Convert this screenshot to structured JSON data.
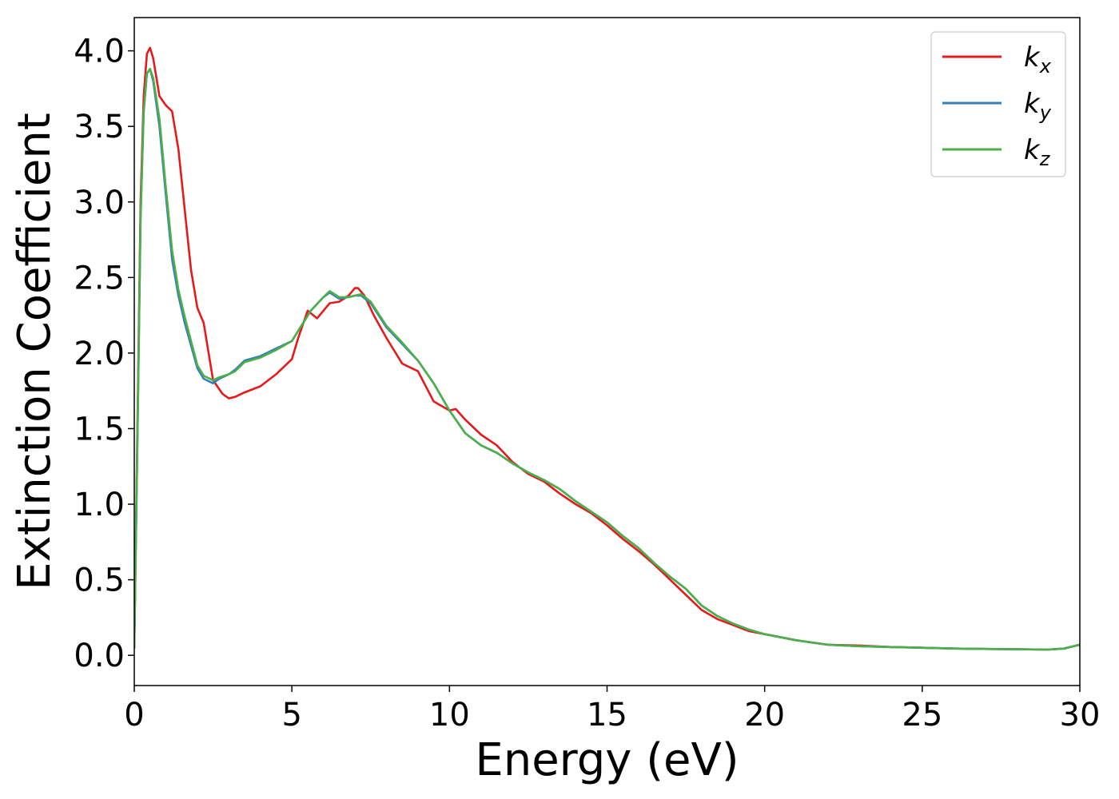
{
  "chart_data": {
    "type": "line",
    "xlabel": "Energy (eV)",
    "ylabel": "Extinction Coefficient",
    "xlim": [
      0,
      30
    ],
    "ylim": [
      -0.2,
      4.22
    ],
    "xticks": [
      0,
      5,
      10,
      15,
      20,
      25,
      30
    ],
    "xtick_labels": [
      "0",
      "5",
      "10",
      "15",
      "20",
      "25",
      "30"
    ],
    "yticks": [
      0.0,
      0.5,
      1.0,
      1.5,
      2.0,
      2.5,
      3.0,
      3.5,
      4.0
    ],
    "ytick_labels": [
      "0.0",
      "0.5",
      "1.0",
      "1.5",
      "2.0",
      "2.5",
      "3.0",
      "3.5",
      "4.0"
    ],
    "grid": false,
    "legend_position": "top-right",
    "series": [
      {
        "name": "k",
        "subscript": "x",
        "color": "#e41a1c",
        "x": [
          0,
          0.1,
          0.2,
          0.3,
          0.4,
          0.5,
          0.6,
          0.8,
          1.0,
          1.2,
          1.4,
          1.6,
          1.8,
          2.0,
          2.2,
          2.5,
          2.8,
          3.0,
          3.2,
          3.5,
          4.0,
          4.5,
          5.0,
          5.2,
          5.5,
          5.8,
          6.0,
          6.2,
          6.5,
          6.8,
          7.0,
          7.1,
          7.3,
          7.6,
          8.0,
          8.5,
          9.0,
          9.5,
          10.0,
          10.2,
          10.5,
          11.0,
          11.5,
          12.0,
          12.5,
          13.0,
          13.5,
          14.0,
          14.5,
          15.0,
          15.5,
          16.0,
          16.5,
          17.0,
          17.5,
          18.0,
          18.5,
          19.0,
          19.5,
          20.0,
          21.0,
          22.0,
          23.0,
          24.0,
          25.0,
          26.0,
          27.0,
          28.0,
          29.0,
          29.5,
          30.0
        ],
        "y": [
          0.05,
          1.5,
          3.0,
          3.7,
          3.98,
          4.02,
          3.95,
          3.7,
          3.64,
          3.6,
          3.35,
          2.95,
          2.55,
          2.3,
          2.2,
          1.82,
          1.73,
          1.7,
          1.71,
          1.74,
          1.78,
          1.86,
          1.96,
          2.1,
          2.28,
          2.23,
          2.28,
          2.33,
          2.34,
          2.38,
          2.43,
          2.43,
          2.38,
          2.25,
          2.1,
          1.93,
          1.88,
          1.68,
          1.62,
          1.63,
          1.56,
          1.46,
          1.39,
          1.28,
          1.2,
          1.15,
          1.07,
          1.0,
          0.94,
          0.86,
          0.77,
          0.69,
          0.6,
          0.5,
          0.4,
          0.3,
          0.24,
          0.2,
          0.16,
          0.14,
          0.1,
          0.07,
          0.065,
          0.055,
          0.05,
          0.045,
          0.042,
          0.04,
          0.038,
          0.045,
          0.07
        ]
      },
      {
        "name": "k",
        "subscript": "y",
        "color": "#377eb8",
        "x": [
          0,
          0.1,
          0.2,
          0.3,
          0.4,
          0.5,
          0.6,
          0.8,
          1.0,
          1.2,
          1.4,
          1.6,
          1.8,
          2.0,
          2.2,
          2.4,
          2.5,
          2.7,
          3.0,
          3.2,
          3.5,
          4.0,
          4.5,
          5.0,
          5.3,
          5.6,
          6.0,
          6.2,
          6.5,
          6.8,
          7.0,
          7.2,
          7.5,
          8.0,
          8.5,
          9.0,
          9.5,
          10.0,
          10.5,
          11.0,
          11.5,
          12.0,
          12.5,
          13.0,
          13.5,
          14.0,
          14.5,
          15.0,
          15.5,
          16.0,
          16.5,
          17.0,
          17.5,
          18.0,
          18.5,
          19.0,
          19.5,
          20.0,
          21.0,
          22.0,
          23.0,
          24.0,
          25.0,
          26.0,
          27.0,
          28.0,
          29.0,
          29.5,
          30.0
        ],
        "y": [
          0.05,
          1.4,
          2.9,
          3.6,
          3.85,
          3.88,
          3.8,
          3.5,
          3.05,
          2.62,
          2.38,
          2.2,
          2.05,
          1.9,
          1.83,
          1.81,
          1.8,
          1.83,
          1.86,
          1.89,
          1.95,
          1.98,
          2.03,
          2.08,
          2.18,
          2.28,
          2.37,
          2.4,
          2.36,
          2.37,
          2.38,
          2.38,
          2.33,
          2.17,
          2.06,
          1.95,
          1.8,
          1.62,
          1.47,
          1.39,
          1.34,
          1.27,
          1.21,
          1.16,
          1.1,
          1.02,
          0.95,
          0.88,
          0.79,
          0.71,
          0.61,
          0.52,
          0.44,
          0.33,
          0.26,
          0.21,
          0.17,
          0.14,
          0.1,
          0.07,
          0.06,
          0.055,
          0.05,
          0.045,
          0.042,
          0.04,
          0.038,
          0.045,
          0.07
        ]
      },
      {
        "name": "k",
        "subscript": "z",
        "color": "#4daf4a",
        "x": [
          0,
          0.1,
          0.2,
          0.3,
          0.4,
          0.5,
          0.6,
          0.8,
          1.0,
          1.2,
          1.4,
          1.6,
          1.8,
          2.0,
          2.2,
          2.4,
          2.5,
          2.7,
          3.0,
          3.2,
          3.5,
          4.0,
          4.5,
          5.0,
          5.3,
          5.6,
          6.0,
          6.2,
          6.5,
          6.8,
          7.0,
          7.2,
          7.5,
          8.0,
          8.5,
          9.0,
          9.5,
          10.0,
          10.5,
          11.0,
          11.5,
          12.0,
          12.5,
          13.0,
          13.5,
          14.0,
          14.5,
          15.0,
          15.5,
          16.0,
          16.5,
          17.0,
          17.5,
          18.0,
          18.5,
          19.0,
          19.5,
          20.0,
          21.0,
          22.0,
          23.0,
          24.0,
          25.0,
          26.0,
          27.0,
          28.0,
          29.0,
          29.5,
          30.0
        ],
        "y": [
          0.05,
          1.4,
          2.9,
          3.6,
          3.85,
          3.88,
          3.82,
          3.55,
          3.1,
          2.68,
          2.42,
          2.24,
          2.08,
          1.92,
          1.85,
          1.83,
          1.82,
          1.84,
          1.86,
          1.88,
          1.94,
          1.97,
          2.02,
          2.08,
          2.18,
          2.28,
          2.37,
          2.41,
          2.37,
          2.37,
          2.38,
          2.39,
          2.34,
          2.18,
          2.07,
          1.95,
          1.8,
          1.62,
          1.47,
          1.39,
          1.34,
          1.27,
          1.21,
          1.16,
          1.1,
          1.02,
          0.95,
          0.88,
          0.79,
          0.71,
          0.61,
          0.52,
          0.44,
          0.33,
          0.26,
          0.21,
          0.17,
          0.14,
          0.1,
          0.07,
          0.06,
          0.055,
          0.05,
          0.045,
          0.042,
          0.04,
          0.038,
          0.045,
          0.07
        ]
      }
    ]
  }
}
